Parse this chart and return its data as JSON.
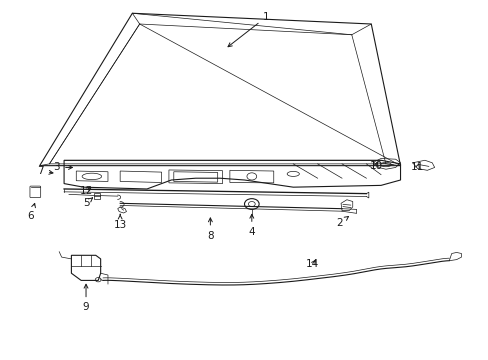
{
  "background_color": "#ffffff",
  "line_color": "#1a1a1a",
  "figsize": [
    4.89,
    3.6
  ],
  "dpi": 100,
  "leaders": {
    "1": {
      "text": [
        0.545,
        0.955
      ],
      "arrow": [
        0.46,
        0.865
      ]
    },
    "2": {
      "text": [
        0.695,
        0.38
      ],
      "arrow": [
        0.715,
        0.4
      ]
    },
    "3": {
      "text": [
        0.115,
        0.535
      ],
      "arrow": [
        0.155,
        0.535
      ]
    },
    "4": {
      "text": [
        0.515,
        0.355
      ],
      "arrow": [
        0.515,
        0.415
      ]
    },
    "5": {
      "text": [
        0.175,
        0.435
      ],
      "arrow": [
        0.19,
        0.452
      ]
    },
    "6": {
      "text": [
        0.062,
        0.4
      ],
      "arrow": [
        0.072,
        0.445
      ]
    },
    "7": {
      "text": [
        0.082,
        0.525
      ],
      "arrow": [
        0.115,
        0.518
      ]
    },
    "8": {
      "text": [
        0.43,
        0.345
      ],
      "arrow": [
        0.43,
        0.405
      ]
    },
    "9": {
      "text": [
        0.175,
        0.145
      ],
      "arrow": [
        0.175,
        0.22
      ]
    },
    "10": {
      "text": [
        0.77,
        0.54
      ],
      "arrow": [
        0.775,
        0.56
      ]
    },
    "11": {
      "text": [
        0.855,
        0.535
      ],
      "arrow": [
        0.86,
        0.555
      ]
    },
    "12": {
      "text": [
        0.175,
        0.47
      ],
      "arrow": [
        0.19,
        0.488
      ]
    },
    "13": {
      "text": [
        0.245,
        0.375
      ],
      "arrow": [
        0.245,
        0.405
      ]
    },
    "14": {
      "text": [
        0.64,
        0.265
      ],
      "arrow": [
        0.65,
        0.285
      ]
    }
  }
}
